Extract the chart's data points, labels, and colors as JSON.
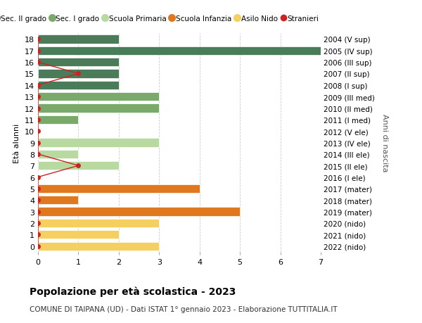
{
  "ages": [
    18,
    17,
    16,
    15,
    14,
    13,
    12,
    11,
    10,
    9,
    8,
    7,
    6,
    5,
    4,
    3,
    2,
    1,
    0
  ],
  "years": [
    "2004 (V sup)",
    "2005 (IV sup)",
    "2006 (III sup)",
    "2007 (II sup)",
    "2008 (I sup)",
    "2009 (III med)",
    "2010 (II med)",
    "2011 (I med)",
    "2012 (V ele)",
    "2013 (IV ele)",
    "2014 (III ele)",
    "2015 (II ele)",
    "2016 (I ele)",
    "2017 (mater)",
    "2018 (mater)",
    "2019 (mater)",
    "2020 (nido)",
    "2021 (nido)",
    "2022 (nido)"
  ],
  "values": [
    2,
    7,
    2,
    2,
    2,
    3,
    3,
    1,
    0,
    3,
    1,
    2,
    0,
    4,
    1,
    5,
    3,
    2,
    3
  ],
  "stranieri": [
    0,
    0,
    0,
    1,
    0,
    0,
    0,
    0,
    0,
    0,
    0,
    1,
    0,
    0,
    0,
    0,
    0,
    0,
    0
  ],
  "categories": {
    "sec2": [
      18,
      17,
      16,
      15,
      14
    ],
    "sec1": [
      13,
      12,
      11
    ],
    "primaria": [
      10,
      9,
      8,
      7,
      6
    ],
    "infanzia": [
      5,
      4,
      3
    ],
    "nido": [
      2,
      1,
      0
    ]
  },
  "colors": {
    "sec2": "#4a7c59",
    "sec1": "#7aaa6a",
    "primaria": "#b8d9a0",
    "infanzia": "#e07820",
    "nido": "#f5d060",
    "stranieri": "#cc2222",
    "background": "#ffffff",
    "grid": "#cccccc"
  },
  "title": "Popolazione per età scolastica - 2023",
  "subtitle": "COMUNE DI TAIPANA (UD) - Dati ISTAT 1° gennaio 2023 - Elaborazione TUTTITALIA.IT",
  "ylabel_left": "Età alunni",
  "ylabel_right": "Anni di nascita",
  "xlim": [
    0,
    7
  ],
  "xticks": [
    0,
    1,
    2,
    3,
    4,
    5,
    6,
    7
  ],
  "legend_labels": [
    "Sec. II grado",
    "Sec. I grado",
    "Scuola Primaria",
    "Scuola Infanzia",
    "Asilo Nido",
    "Stranieri"
  ]
}
